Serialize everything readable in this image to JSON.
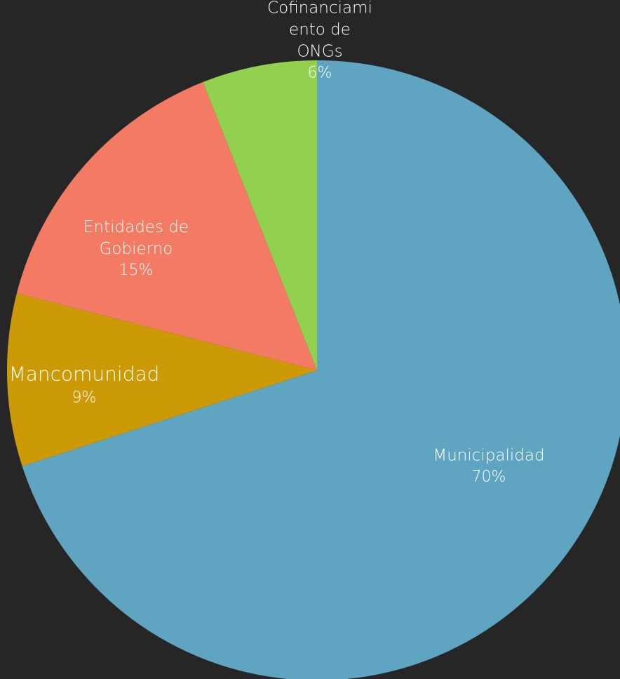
{
  "chart_data": {
    "type": "pie",
    "categories": [
      "Municipalidad",
      "Mancomunidad",
      "Entidades de Gobierno",
      "Cofinanciamiento de ONGs"
    ],
    "values": [
      70,
      9,
      15,
      6
    ],
    "value_labels": [
      "70%",
      "9%",
      "15%",
      "6%"
    ],
    "colors": [
      "#5fa5c1",
      "#cc9a06",
      "#f47b63",
      "#92d050"
    ]
  }
}
